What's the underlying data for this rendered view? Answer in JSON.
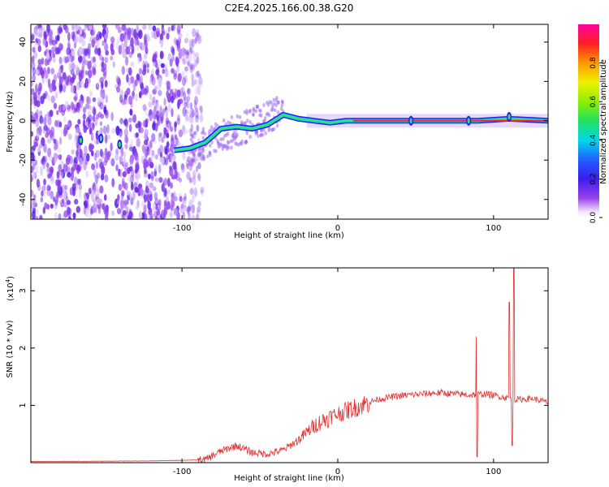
{
  "chart_data": [
    {
      "type": "heatmap",
      "title": "C2E4.2025.166.00.38.G20",
      "xlabel": "Height of straight line (km)",
      "ylabel": "Frequency (Hz)",
      "xlim": [
        -197,
        135
      ],
      "ylim": [
        -50,
        49
      ],
      "xticks": [
        -100,
        0,
        100
      ],
      "yticks": [
        -40,
        -20,
        0,
        20,
        40
      ],
      "colorbar": {
        "label": "Normalized spectral amplitude",
        "range": [
          0,
          1
        ],
        "ticks": [
          0.0,
          0.2,
          0.4,
          0.6,
          0.8
        ],
        "colormap": "rainbow (white-purple-blue-cyan-green-yellow-orange-red-magenta)"
      },
      "ridge_line": {
        "x": [
          -105,
          -95,
          -85,
          -75,
          -65,
          -55,
          -45,
          -35,
          -25,
          -15,
          -5,
          5,
          15,
          30,
          60,
          90,
          110,
          135
        ],
        "y": [
          -15,
          -14,
          -11,
          -4,
          -3,
          -4,
          -2,
          3,
          1,
          0,
          -1,
          0,
          0,
          0,
          0,
          0,
          1,
          0
        ]
      },
      "noise_region_x": [
        -197,
        -95
      ],
      "grid": false
    },
    {
      "type": "line",
      "xlabel": "Height of straight line (km)",
      "ylabel": "SNR (10 * v/v)",
      "yscale_label": "(x10",
      "yscale_exp": "4",
      "yscale_close": ")",
      "xlim": [
        -197,
        135
      ],
      "ylim": [
        0,
        3.4
      ],
      "xticks": [
        -100,
        0,
        100
      ],
      "yticks": [
        1,
        2,
        3
      ],
      "color": "#e03030",
      "envelope": {
        "x": [
          -197,
          -120,
          -85,
          -75,
          -65,
          -55,
          -45,
          -35,
          -25,
          -15,
          -5,
          5,
          15,
          25,
          35,
          45,
          55,
          65,
          75,
          85,
          95,
          105,
          115,
          125,
          135
        ],
        "y": [
          0.02,
          0.03,
          0.05,
          0.2,
          0.3,
          0.18,
          0.15,
          0.22,
          0.4,
          0.65,
          0.8,
          0.9,
          1.0,
          1.1,
          1.15,
          1.18,
          1.2,
          1.22,
          1.2,
          1.18,
          1.2,
          1.15,
          1.1,
          1.12,
          1.05
        ]
      },
      "spikes": [
        {
          "x": 89,
          "y": 2.2
        },
        {
          "x": 89.5,
          "y": 0.1
        },
        {
          "x": 110,
          "y": 2.8
        },
        {
          "x": 113,
          "y": 3.4
        },
        {
          "x": 112,
          "y": 0.3
        }
      ],
      "grid": false
    }
  ]
}
